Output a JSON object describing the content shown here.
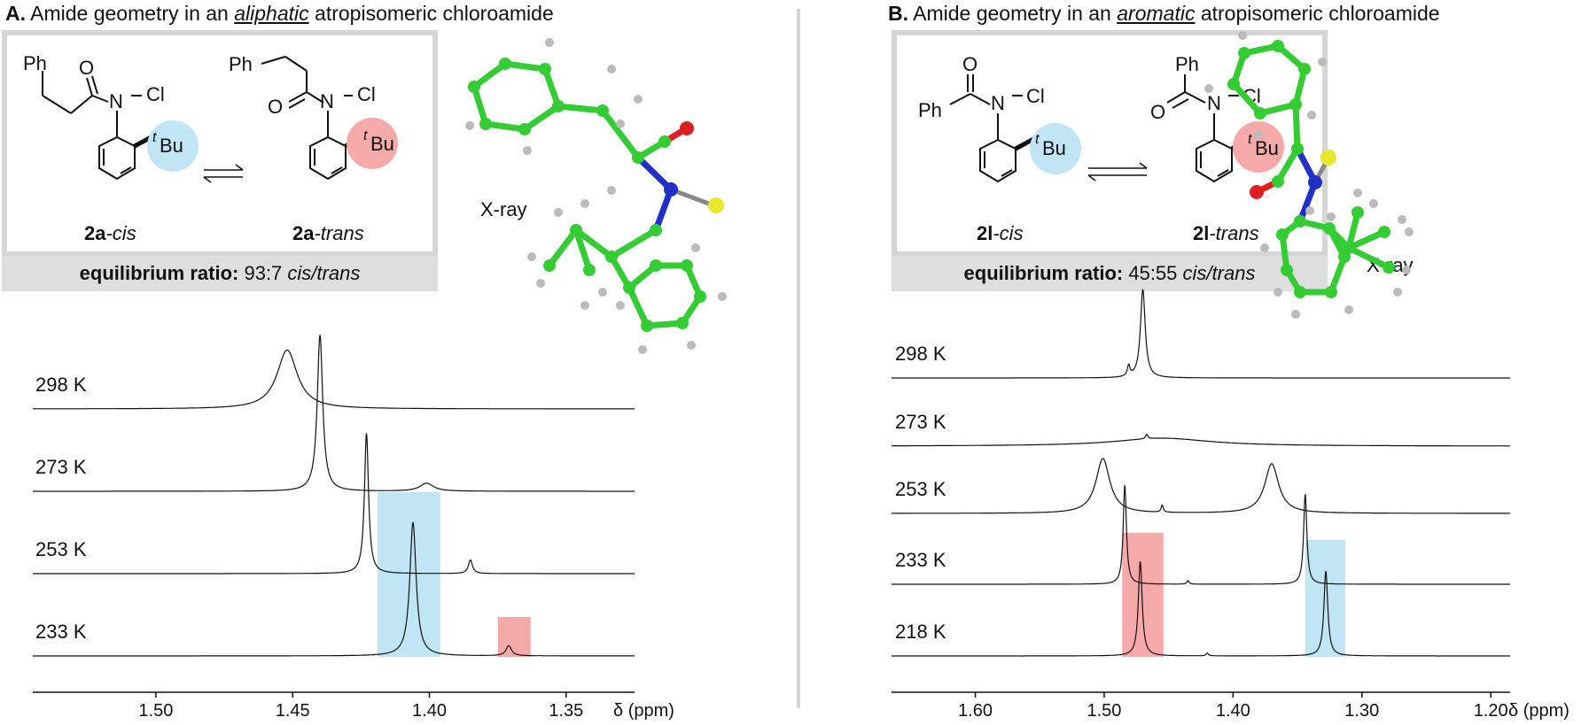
{
  "panel_a": {
    "title_prefix": "A.",
    "title_pre": "Amide geometry in an ",
    "title_emph": "aliphatic",
    "title_post": " atropisomeric chloroamide",
    "compound_cis": {
      "num": "2a",
      "suffix": "-cis"
    },
    "compound_trans": {
      "num": "2a",
      "suffix": "-trans"
    },
    "atoms": {
      "ph": "Ph",
      "o": "O",
      "n": "N",
      "cl": "Cl",
      "t": "t",
      "bu": "Bu"
    },
    "ratio_label": "equilibrium ratio:",
    "ratio_value": "93:7",
    "ratio_suffix": "cis/trans",
    "xray_label": "X-ray",
    "axis_label": "δ (ppm)"
  },
  "panel_b": {
    "title_prefix": "B.",
    "title_pre": "Amide geometry in an ",
    "title_emph": "aromatic",
    "title_post": " atropisomeric chloroamide",
    "compound_cis": {
      "num": "2l",
      "suffix": "-cis"
    },
    "compound_trans": {
      "num": "2l",
      "suffix": "-trans"
    },
    "atoms": {
      "ph": "Ph",
      "o": "O",
      "n": "N",
      "cl": "Cl",
      "t": "t",
      "bu": "Bu"
    },
    "ratio_label": "equilibrium ratio:",
    "ratio_value": "45:55",
    "ratio_suffix": "cis/trans",
    "xray_label": "X-ray",
    "axis_label": "δ (ppm)"
  },
  "colors": {
    "cis_highlight": "#c0e6f5",
    "trans_highlight": "#f6a9a9",
    "box_border": "#d6d6d6",
    "ratio_bg": "#dedede",
    "carbon": "#33cc33",
    "nitrogen": "#1f2fc8",
    "oxygen": "#e02020",
    "chlorine": "#e8e82a",
    "hydrogen": "#bbbbbb"
  },
  "chart_data": [
    {
      "type": "line",
      "panel": "A",
      "xlabel": "δ (ppm)",
      "x_range": [
        1.545,
        1.325
      ],
      "x_ticks": [
        "1.50",
        "1.45",
        "1.40",
        "1.35"
      ],
      "x_tick_values": [
        1.5,
        1.45,
        1.4,
        1.35
      ],
      "series": [
        {
          "name": "298 K",
          "peaks": [
            {
              "shift": 1.452,
              "height": 0.52,
              "width": 0.0045
            }
          ]
        },
        {
          "name": "273 K",
          "peaks": [
            {
              "shift": 1.44,
              "height": 1.38,
              "width": 0.0012
            },
            {
              "shift": 1.401,
              "height": 0.07,
              "width": 0.003
            }
          ]
        },
        {
          "name": "253 K",
          "peaks": [
            {
              "shift": 1.423,
              "height": 1.24,
              "width": 0.0009
            },
            {
              "shift": 1.385,
              "height": 0.12,
              "width": 0.0009
            }
          ]
        },
        {
          "name": "233 K",
          "peaks": [
            {
              "shift": 1.406,
              "height": 1.18,
              "width": 0.0014
            },
            {
              "shift": 1.371,
              "height": 0.09,
              "width": 0.0012
            }
          ]
        }
      ],
      "highlights": [
        {
          "label": "cis",
          "from": 1.419,
          "to": 1.396,
          "color": "#c0e6f5"
        },
        {
          "label": "trans",
          "from": 1.375,
          "to": 1.363,
          "color": "#f6a9a9"
        }
      ]
    },
    {
      "type": "line",
      "panel": "B",
      "xlabel": "δ (ppm)",
      "x_range": [
        1.665,
        1.185
      ],
      "x_ticks": [
        "1.60",
        "1.50",
        "1.40",
        "1.30",
        "1.20"
      ],
      "x_tick_values": [
        1.6,
        1.5,
        1.4,
        1.3,
        1.2
      ],
      "series": [
        {
          "name": "298 K",
          "peaks": [
            {
              "shift": 1.47,
              "height": 1.0,
              "width": 0.0022
            },
            {
              "shift": 1.481,
              "height": 0.12,
              "width": 0.0012
            }
          ]
        },
        {
          "name": "273 K",
          "peaks": [
            {
              "shift": 1.455,
              "height": 0.09,
              "width": 0.045
            },
            {
              "shift": 1.467,
              "height": 0.05,
              "width": 0.001
            }
          ]
        },
        {
          "name": "253 K",
          "peaks": [
            {
              "shift": 1.501,
              "height": 0.62,
              "width": 0.0065
            },
            {
              "shift": 1.37,
              "height": 0.56,
              "width": 0.0065
            },
            {
              "shift": 1.455,
              "height": 0.08,
              "width": 0.001
            }
          ]
        },
        {
          "name": "233 K",
          "peaks": [
            {
              "shift": 1.484,
              "height": 1.12,
              "width": 0.0015
            },
            {
              "shift": 1.344,
              "height": 1.02,
              "width": 0.0015
            },
            {
              "shift": 1.435,
              "height": 0.04,
              "width": 0.001
            }
          ]
        },
        {
          "name": "218 K",
          "peaks": [
            {
              "shift": 1.472,
              "height": 1.07,
              "width": 0.0018
            },
            {
              "shift": 1.328,
              "height": 0.96,
              "width": 0.0018
            },
            {
              "shift": 1.42,
              "height": 0.03,
              "width": 0.001
            }
          ]
        }
      ],
      "highlights": [
        {
          "label": "trans",
          "from": 1.486,
          "to": 1.454,
          "color": "#f6a9a9"
        },
        {
          "label": "cis",
          "from": 1.344,
          "to": 1.313,
          "color": "#c0e6f5"
        }
      ]
    }
  ]
}
